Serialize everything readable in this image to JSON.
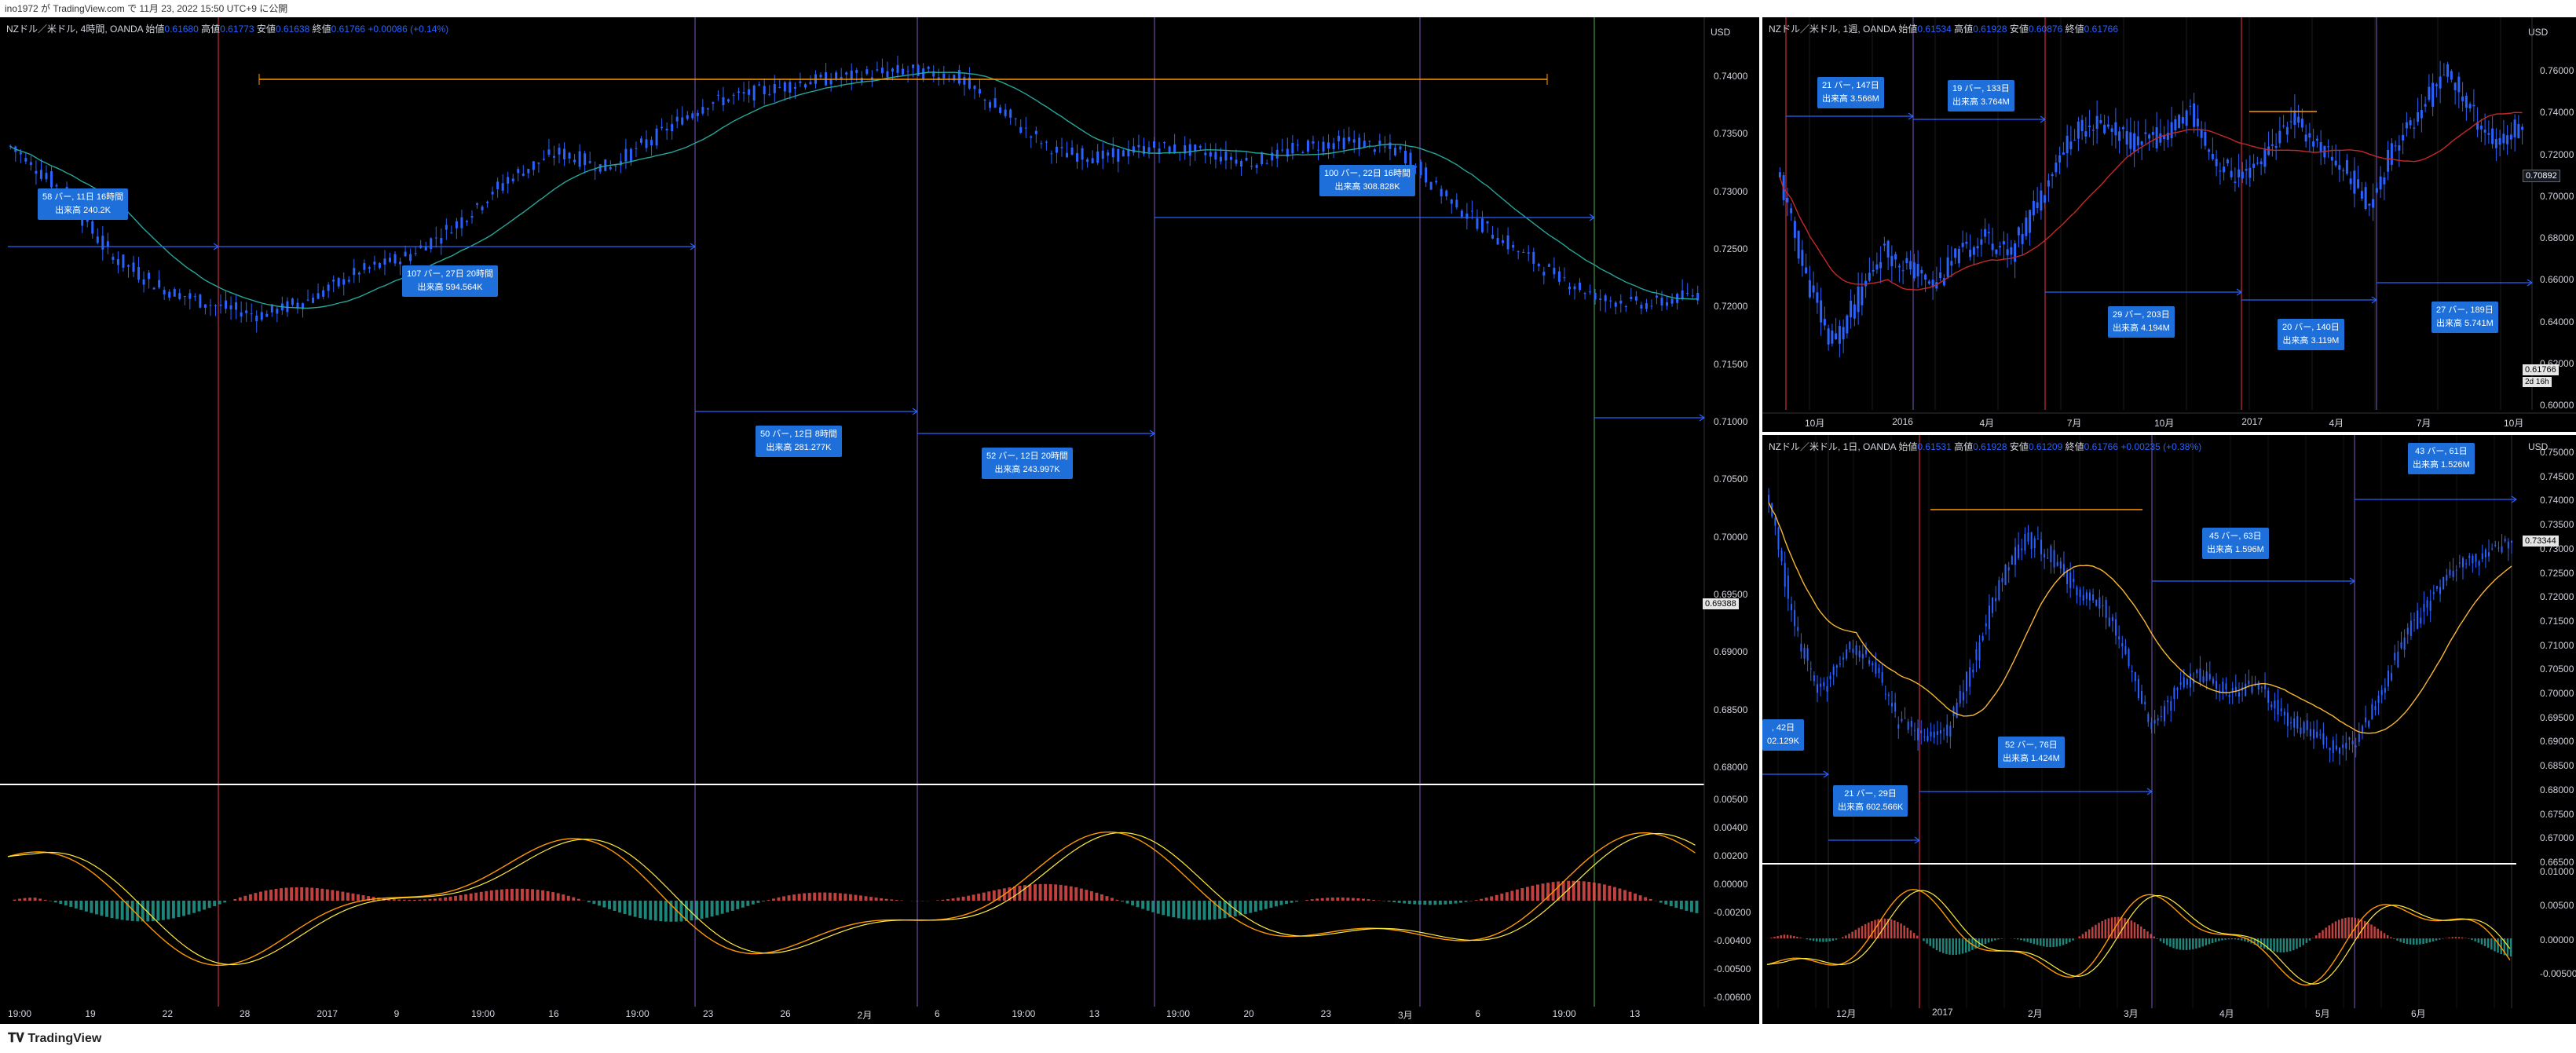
{
  "header": {
    "caption": "ino1972 が TradingView.com で 11月 23, 2022 15:50 UTC+9 に公開"
  },
  "footer": {
    "brand": "TradingView"
  },
  "colors": {
    "bg": "#000000",
    "candle": "#2962ff",
    "sma": "#26a69a",
    "sma_orange": "#f7b731",
    "macd": "#ff9800",
    "signal": "#ffeb3b",
    "hist_up": "#26a69a",
    "hist_down": "#ef5350",
    "measure_line": "#2962ff",
    "measure_box": "#1e6fd9",
    "range_orange": "#ff9800",
    "vline_red": "#f23645",
    "vline_purple": "#7e57c2",
    "vline_green": "#4caf50"
  },
  "left": {
    "title": {
      "symbol": "NZドル／米ドル, 4時間, OANDA",
      "o_label": "始値",
      "o": "0.61680",
      "h_label": "高値",
      "h": "0.61773",
      "l_label": "安値",
      "l": "0.61638",
      "c_label": "終値",
      "c": "0.61766",
      "chg": "+0.00086 (+0.14%)"
    },
    "unit": "USD",
    "price_ticks": [
      "0.74000",
      "0.73500",
      "0.73000",
      "0.72500",
      "0.72000",
      "0.71500",
      "0.71000",
      "0.70500",
      "0.70000",
      "0.69500",
      "0.69000",
      "0.68500",
      "0.68000"
    ],
    "last_price": "0.69388",
    "macd_ticks": [
      "0.00500",
      "0.00400",
      "0.00200",
      "0.00000",
      "-0.00200",
      "-0.00400",
      "-0.00500",
      "-0.00600"
    ],
    "x_ticks": [
      "19:00",
      "19",
      "22",
      "28",
      "2017",
      "9",
      "19:00",
      "16",
      "19:00",
      "23",
      "26",
      "2月",
      "6",
      "19:00",
      "13",
      "19:00",
      "20",
      "23",
      "3月",
      "6",
      "19:00",
      "13"
    ],
    "measures": [
      {
        "line1": "58 バー, 11日 16時間",
        "line2": "出来高 240.2K"
      },
      {
        "line1": "107 バー, 27日 20時間",
        "line2": "出来高 594.564K"
      },
      {
        "line1": "50 バー, 12日 8時間",
        "line2": "出来高 281.277K"
      },
      {
        "line1": "52 バー, 12日 20時間",
        "line2": "出来高 243.997K"
      },
      {
        "line1": "100 バー, 22日 16時間",
        "line2": "出来高 308.828K"
      }
    ]
  },
  "topright": {
    "title": {
      "symbol": "NZドル／米ドル, 1週, OANDA",
      "o_label": "始値",
      "o": "0.61534",
      "h_label": "高値",
      "h": "0.61928",
      "l_label": "安値",
      "l": "0.60876",
      "c_label": "終値",
      "c": "0.61766"
    },
    "unit": "USD",
    "price_ticks": [
      "0.76000",
      "0.74000",
      "0.72000",
      "0.70000",
      "0.68000",
      "0.66000",
      "0.64000",
      "0.62000",
      "0.60000"
    ],
    "last_price": "0.70892",
    "side_tag1": "0.61766",
    "side_tag2": "2d 16h",
    "x_ticks": [
      "10月",
      "2016",
      "4月",
      "7月",
      "10月",
      "2017",
      "4月",
      "7月",
      "10月"
    ],
    "measures": [
      {
        "line1": "21 バー, 147日",
        "line2": "出来高 3.566M"
      },
      {
        "line1": "19 バー, 133日",
        "line2": "出来高 3.764M"
      },
      {
        "line1": "29 バー, 203日",
        "line2": "出来高 4.194M"
      },
      {
        "line1": "20 バー, 140日",
        "line2": "出来高 3.119M"
      },
      {
        "line1": "27 バー, 189日",
        "line2": "出来高 5.741M"
      }
    ]
  },
  "bottomright": {
    "title": {
      "symbol": "NZドル／米ドル, 1日, OANDA",
      "o_label": "始値",
      "o": "0.61531",
      "h_label": "高値",
      "h": "0.61928",
      "l_label": "安値",
      "l": "0.61209",
      "c_label": "終値",
      "c": "0.61766",
      "chg": "+0.00235 (+0.38%)"
    },
    "unit": "USD",
    "price_ticks": [
      "0.75000",
      "0.74500",
      "0.74000",
      "0.73500",
      "0.73000",
      "0.72500",
      "0.72000",
      "0.71500",
      "0.71000",
      "0.70500",
      "0.70000",
      "0.69500",
      "0.69000",
      "0.68500",
      "0.68000",
      "0.67500",
      "0.67000",
      "0.66500"
    ],
    "last_price": "0.73344",
    "macd_ticks": [
      "0.01000",
      "0.00500",
      "0.00000",
      "-0.00500"
    ],
    "x_ticks": [
      "12月",
      "2017",
      "2月",
      "3月",
      "4月",
      "5月",
      "6月"
    ],
    "measures": [
      {
        "line1": ", 42日",
        "line2": "02.129K"
      },
      {
        "line1": "21 バー, 29日",
        "line2": "出来高 602.566K"
      },
      {
        "line1": "52 バー, 76日",
        "line2": "出来高 1.424M"
      },
      {
        "line1": "45 バー, 63日",
        "line2": "出来高 1.596M"
      },
      {
        "line1": "43 バー, 61日",
        "line2": "出来高 1.526M"
      }
    ]
  }
}
